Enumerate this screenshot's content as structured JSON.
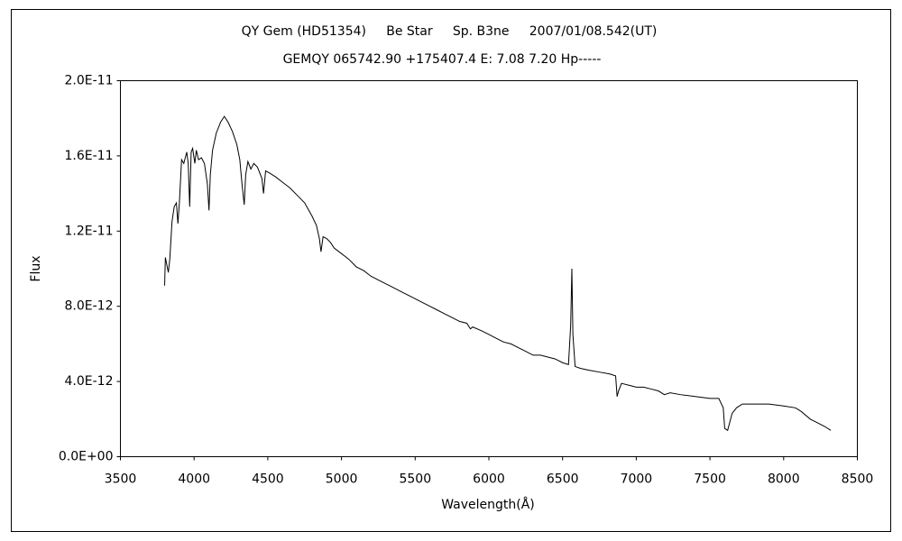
{
  "chart_data": {
    "type": "line",
    "title": "QY Gem (HD51354)     Be Star     Sp. B3ne     2007/01/08.542(UT)",
    "subtitle": "GEMQY 065742.90 +175407.4 E: 7.08 7.20 Hp-----",
    "x_label": "Wavelength(Å)",
    "y_label": "Flux",
    "xlim": [
      3500,
      8500
    ],
    "xticks": [
      3500,
      4000,
      4500,
      5000,
      5500,
      6000,
      6500,
      7000,
      7500,
      8000,
      8500
    ],
    "ylim": [
      0,
      2e-11
    ],
    "yticks": [
      {
        "value": 0,
        "label": "0.0E+00"
      },
      {
        "value": 4e-12,
        "label": "4.0E-12"
      },
      {
        "value": 8e-12,
        "label": "8.0E-12"
      },
      {
        "value": 1.2e-11,
        "label": "1.2E-11"
      },
      {
        "value": 1.6e-11,
        "label": "1.6E-11"
      },
      {
        "value": 2e-11,
        "label": "2.0E-11"
      }
    ],
    "x": [
      3800,
      3805,
      3815,
      3825,
      3835,
      3850,
      3865,
      3880,
      3890,
      3900,
      3915,
      3930,
      3950,
      3960,
      3970,
      3980,
      3990,
      4005,
      4015,
      4030,
      4050,
      4070,
      4090,
      4101,
      4110,
      4125,
      4150,
      4180,
      4205,
      4230,
      4260,
      4290,
      4310,
      4325,
      4340,
      4350,
      4365,
      4385,
      4405,
      4430,
      4460,
      4471,
      4485,
      4510,
      4550,
      4600,
      4650,
      4700,
      4750,
      4800,
      4830,
      4850,
      4861,
      4875,
      4900,
      4925,
      4950,
      5000,
      5050,
      5100,
      5150,
      5200,
      5250,
      5300,
      5350,
      5400,
      5450,
      5500,
      5550,
      5600,
      5650,
      5700,
      5750,
      5800,
      5850,
      5875,
      5890,
      5950,
      6000,
      6050,
      6100,
      6150,
      6200,
      6250,
      6300,
      6350,
      6400,
      6450,
      6500,
      6540,
      6555,
      6563,
      6570,
      6585,
      6620,
      6680,
      6750,
      6820,
      6860,
      6870,
      6880,
      6900,
      6950,
      7000,
      7050,
      7100,
      7150,
      7190,
      7230,
      7300,
      7400,
      7500,
      7560,
      7590,
      7600,
      7620,
      7650,
      7680,
      7720,
      7800,
      7900,
      8000,
      8080,
      8120,
      8180,
      8230,
      8280,
      8320
    ],
    "series": [
      {
        "name": "Flux",
        "color": "#000000",
        "values": [
          9.1e-12,
          1.06e-11,
          1.02e-11,
          9.8e-12,
          1.05e-11,
          1.25e-11,
          1.33e-11,
          1.35e-11,
          1.24e-11,
          1.35e-11,
          1.58e-11,
          1.56e-11,
          1.62e-11,
          1.56e-11,
          1.33e-11,
          1.62e-11,
          1.64e-11,
          1.56e-11,
          1.63e-11,
          1.58e-11,
          1.59e-11,
          1.56e-11,
          1.45e-11,
          1.31e-11,
          1.5e-11,
          1.63e-11,
          1.72e-11,
          1.78e-11,
          1.81e-11,
          1.78e-11,
          1.73e-11,
          1.66e-11,
          1.58e-11,
          1.45e-11,
          1.34e-11,
          1.5e-11,
          1.57e-11,
          1.53e-11,
          1.56e-11,
          1.54e-11,
          1.48e-11,
          1.4e-11,
          1.52e-11,
          1.51e-11,
          1.49e-11,
          1.46e-11,
          1.43e-11,
          1.39e-11,
          1.35e-11,
          1.28e-11,
          1.23e-11,
          1.16e-11,
          1.09e-11,
          1.17e-11,
          1.16e-11,
          1.14e-11,
          1.11e-11,
          1.08e-11,
          1.05e-11,
          1.01e-11,
          9.9e-12,
          9.6e-12,
          9.4e-12,
          9.2e-12,
          9e-12,
          8.8e-12,
          8.6e-12,
          8.4e-12,
          8.2e-12,
          8e-12,
          7.8e-12,
          7.6e-12,
          7.4e-12,
          7.2e-12,
          7.1e-12,
          6.8e-12,
          6.9e-12,
          6.7e-12,
          6.5e-12,
          6.3e-12,
          6.1e-12,
          6e-12,
          5.8e-12,
          5.6e-12,
          5.4e-12,
          5.4e-12,
          5.3e-12,
          5.2e-12,
          5e-12,
          4.9e-12,
          7e-12,
          1e-11,
          6.5e-12,
          4.8e-12,
          4.7e-12,
          4.6e-12,
          4.5e-12,
          4.4e-12,
          4.3e-12,
          3.2e-12,
          3.5e-12,
          3.9e-12,
          3.8e-12,
          3.7e-12,
          3.7e-12,
          3.6e-12,
          3.5e-12,
          3.3e-12,
          3.4e-12,
          3.3e-12,
          3.2e-12,
          3.1e-12,
          3.1e-12,
          2.6e-12,
          1.5e-12,
          1.4e-12,
          2.3e-12,
          2.6e-12,
          2.8e-12,
          2.8e-12,
          2.8e-12,
          2.7e-12,
          2.6e-12,
          2.4e-12,
          2e-12,
          1.8e-12,
          1.6e-12,
          1.4e-12
        ]
      }
    ]
  }
}
